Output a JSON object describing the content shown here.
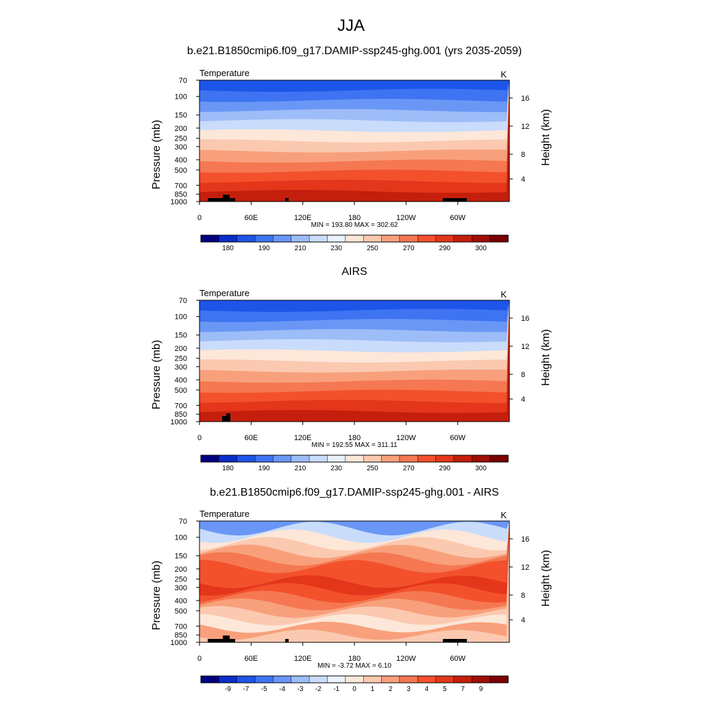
{
  "main_title": "JJA",
  "chart_data": [
    {
      "type": "heatmap",
      "title": "b.e21.B1850cmip6.f09_g17.DAMIP-ssp245-ghg.001 (yrs 2035-2059)",
      "left_label": "Temperature",
      "right_label": "K",
      "ylabel": "Pressure (mb)",
      "y2label": "Height (km)",
      "x_ticks": [
        "0",
        "60E",
        "120E",
        "180",
        "120W",
        "60W"
      ],
      "y_ticks": [
        "70",
        "100",
        "150",
        "200",
        "250",
        "300",
        "400",
        "500",
        "700",
        "850",
        "1000"
      ],
      "y2_ticks": [
        "16",
        "12",
        "8",
        "4"
      ],
      "stats": "MIN = 193.80  MAX = 302.62",
      "min": 193.8,
      "max": 302.62,
      "colorbar_labels": [
        "180",
        "190",
        "210",
        "230",
        "250",
        "270",
        "290",
        "300"
      ],
      "colorbar_colors": [
        "#00007f",
        "#0a2dc9",
        "#1d55e8",
        "#3e74f2",
        "#6a97f5",
        "#9dbdf8",
        "#c9dcfb",
        "#eaf1ff",
        "#fde7d9",
        "#fbc9b0",
        "#f8a07c",
        "#f57852",
        "#f2512c",
        "#e4361a",
        "#c41f0c",
        "#a00e05",
        "#7a0000"
      ],
      "band_colors": [
        "#1d55e8",
        "#3e74f2",
        "#6a97f5",
        "#9dbdf8",
        "#c9dcfb",
        "#fde7d9",
        "#fbc9b0",
        "#f8a07c",
        "#f57852",
        "#f2512c",
        "#e4361a",
        "#c41f0c"
      ],
      "has_terrain": true
    },
    {
      "type": "heatmap",
      "title": "AIRS",
      "left_label": "Temperature",
      "right_label": "K",
      "ylabel": "Pressure (mb)",
      "y2label": "Height (km)",
      "x_ticks": [
        "0",
        "60E",
        "120E",
        "180",
        "120W",
        "60W"
      ],
      "y_ticks": [
        "70",
        "100",
        "150",
        "200",
        "250",
        "300",
        "400",
        "500",
        "700",
        "850",
        "1000"
      ],
      "y2_ticks": [
        "16",
        "12",
        "8",
        "4"
      ],
      "stats": "MIN = 192.55  MAX = 311.11",
      "min": 192.55,
      "max": 311.11,
      "colorbar_labels": [
        "180",
        "190",
        "210",
        "230",
        "250",
        "270",
        "290",
        "300"
      ],
      "colorbar_colors": [
        "#00007f",
        "#0a2dc9",
        "#1d55e8",
        "#3e74f2",
        "#6a97f5",
        "#9dbdf8",
        "#c9dcfb",
        "#eaf1ff",
        "#fde7d9",
        "#fbc9b0",
        "#f8a07c",
        "#f57852",
        "#f2512c",
        "#e4361a",
        "#c41f0c",
        "#a00e05",
        "#7a0000"
      ],
      "band_colors": [
        "#1d55e8",
        "#3e74f2",
        "#6a97f5",
        "#9dbdf8",
        "#c9dcfb",
        "#fde7d9",
        "#fbc9b0",
        "#f8a07c",
        "#f57852",
        "#f2512c",
        "#e4361a",
        "#c41f0c"
      ],
      "has_terrain": true
    },
    {
      "type": "heatmap",
      "title": "b.e21.B1850cmip6.f09_g17.DAMIP-ssp245-ghg.001 - AIRS",
      "left_label": "Temperature",
      "right_label": "K",
      "ylabel": "Pressure (mb)",
      "y2label": "Height (km)",
      "x_ticks": [
        "0",
        "60E",
        "120E",
        "180",
        "120W",
        "60W"
      ],
      "y_ticks": [
        "70",
        "100",
        "150",
        "200",
        "250",
        "300",
        "400",
        "500",
        "700",
        "850",
        "1000"
      ],
      "y2_ticks": [
        "16",
        "12",
        "8",
        "4"
      ],
      "stats": "MIN =  -3.72  MAX =   6.10",
      "min": -3.72,
      "max": 6.1,
      "colorbar_labels": [
        "-9",
        "-7",
        "-5",
        "-4",
        "-3",
        "-2",
        "-1",
        "0",
        "1",
        "2",
        "3",
        "4",
        "5",
        "7",
        "9"
      ],
      "colorbar_colors": [
        "#00007f",
        "#0a2dc9",
        "#1d55e8",
        "#3e74f2",
        "#6a97f5",
        "#9dbdf8",
        "#c9dcfb",
        "#eaf1ff",
        "#fde7d9",
        "#fbc9b0",
        "#f8a07c",
        "#f57852",
        "#f2512c",
        "#e4361a",
        "#c41f0c",
        "#a00e05",
        "#7a0000"
      ],
      "band_colors": [
        "#6a97f5",
        "#c9dcfb",
        "#fde7d9",
        "#fbc9b0",
        "#f8a07c",
        "#f57852",
        "#f2512c",
        "#f2512c",
        "#e4361a",
        "#f2512c",
        "#f57852",
        "#f8a07c",
        "#fbc9b0",
        "#fde7d9",
        "#f8a07c",
        "#fbc9b0"
      ],
      "has_terrain": true
    }
  ]
}
